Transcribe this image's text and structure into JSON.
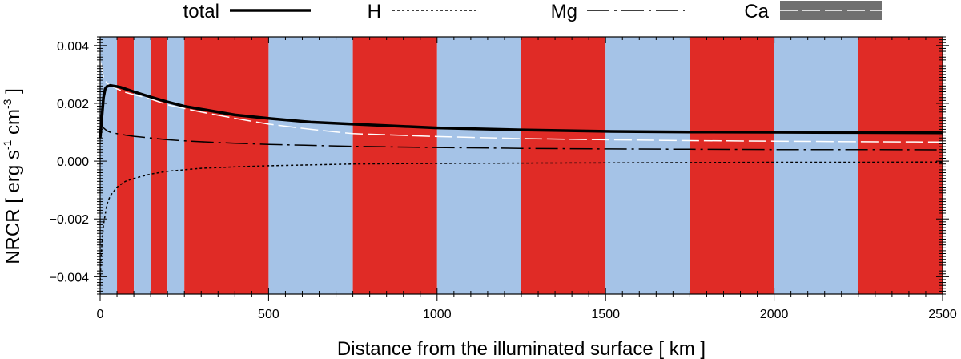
{
  "chart_data": {
    "type": "line",
    "title": "",
    "xlabel": "Distance from the illuminated surface [ km ]",
    "ylabel": {
      "base": "NRCR [ erg s",
      "exp1": "-1",
      "mid": " cm",
      "exp2": "-3",
      "end": " ]"
    },
    "xlim": [
      0,
      2500
    ],
    "ylim": [
      -0.0046,
      0.0043
    ],
    "x_ticks": [
      0,
      500,
      1000,
      1500,
      2000,
      2500
    ],
    "y_ticks": [
      -0.004,
      -0.002,
      0.0,
      0.002,
      0.004
    ],
    "x_tick_labels": [
      "0",
      "500",
      "1000",
      "1500",
      "2000",
      "2500"
    ],
    "y_tick_labels": [
      "−0.004",
      "−0.002",
      "0.000",
      "0.002",
      "0.004"
    ],
    "background_bands": [
      {
        "x0": 0,
        "x1": 50,
        "color": "#a5c3e7"
      },
      {
        "x0": 50,
        "x1": 100,
        "color": "#e02b26"
      },
      {
        "x0": 100,
        "x1": 150,
        "color": "#a5c3e7"
      },
      {
        "x0": 150,
        "x1": 200,
        "color": "#e02b26"
      },
      {
        "x0": 200,
        "x1": 250,
        "color": "#a5c3e7"
      },
      {
        "x0": 250,
        "x1": 500,
        "color": "#e02b26"
      },
      {
        "x0": 500,
        "x1": 750,
        "color": "#a5c3e7"
      },
      {
        "x0": 750,
        "x1": 1000,
        "color": "#e02b26"
      },
      {
        "x0": 1000,
        "x1": 1250,
        "color": "#a5c3e7"
      },
      {
        "x0": 1250,
        "x1": 1500,
        "color": "#e02b26"
      },
      {
        "x0": 1500,
        "x1": 1750,
        "color": "#a5c3e7"
      },
      {
        "x0": 1750,
        "x1": 2000,
        "color": "#e02b26"
      },
      {
        "x0": 2000,
        "x1": 2250,
        "color": "#a5c3e7"
      },
      {
        "x0": 2250,
        "x1": 2500,
        "color": "#e02b26"
      }
    ],
    "series": [
      {
        "name": "total",
        "style": "solid-thick",
        "color": "#000000",
        "x": [
          0,
          5,
          10,
          15,
          20,
          30,
          40,
          50,
          60,
          80,
          100,
          150,
          200,
          250,
          300,
          400,
          500,
          625,
          750,
          1000,
          1250,
          1500,
          1750,
          2000,
          2250,
          2500
        ],
        "y": [
          0.0008,
          0.0015,
          0.0022,
          0.0025,
          0.00258,
          0.00262,
          0.0026,
          0.00258,
          0.00256,
          0.00248,
          0.0024,
          0.00222,
          0.00205,
          0.0019,
          0.0018,
          0.0016,
          0.00148,
          0.00135,
          0.00128,
          0.00115,
          0.00108,
          0.00103,
          0.00101,
          0.001,
          0.00099,
          0.00098
        ]
      },
      {
        "name": "H",
        "style": "dotted",
        "color": "#000000",
        "x": [
          0,
          2,
          5,
          10,
          20,
          30,
          50,
          75,
          100,
          150,
          200,
          250,
          300,
          400,
          500,
          750,
          1000,
          1250,
          1500,
          1750,
          2000,
          2250,
          2500
        ],
        "y": [
          -0.0043,
          -0.0036,
          -0.0029,
          -0.0022,
          -0.0015,
          -0.0012,
          -0.0009,
          -0.0007,
          -0.0006,
          -0.00045,
          -0.00035,
          -0.0003,
          -0.00025,
          -0.0002,
          -0.00016,
          -0.0001,
          -8e-05,
          -7e-05,
          -6e-05,
          -5e-05,
          -4e-05,
          -4e-05,
          -3e-05
        ]
      },
      {
        "name": "Mg",
        "style": "dash-dot",
        "color": "#000000",
        "x": [
          0,
          2,
          5,
          10,
          20,
          30,
          50,
          75,
          100,
          150,
          200,
          250,
          300,
          400,
          500,
          750,
          1000,
          1250,
          1500,
          1750,
          2000,
          2250,
          2500
        ],
        "y": [
          0.0016,
          0.00135,
          0.00125,
          0.00115,
          0.00105,
          0.001,
          0.00095,
          0.0009,
          0.00086,
          0.0008,
          0.00074,
          0.0007,
          0.00067,
          0.00062,
          0.00058,
          0.00051,
          0.00047,
          0.00044,
          0.00042,
          0.00041,
          0.0004,
          0.0004,
          0.00039
        ]
      },
      {
        "name": "Ca",
        "style": "long-dash",
        "color": "#ffffff",
        "x": [
          0,
          5,
          10,
          20,
          30,
          50,
          75,
          100,
          150,
          200,
          250,
          300,
          400,
          500,
          625,
          750,
          1000,
          1250,
          1500,
          1750,
          2000,
          2250,
          2500
        ],
        "y": [
          0.0035,
          0.0032,
          0.0029,
          0.0027,
          0.00262,
          0.0025,
          0.00238,
          0.0023,
          0.00215,
          0.00195,
          0.00182,
          0.0017,
          0.00148,
          0.00128,
          0.0011,
          0.00095,
          0.00085,
          0.00078,
          0.00074,
          0.00071,
          0.00069,
          0.00067,
          0.00066
        ]
      }
    ],
    "legend": [
      {
        "label": "total",
        "style": "solid-thick"
      },
      {
        "label": "H",
        "style": "dotted"
      },
      {
        "label": "Mg",
        "style": "dash-dot"
      },
      {
        "label": "Ca",
        "style": "long-dash-on-gray"
      }
    ],
    "legend_position": "top",
    "legend_swatch_bg": "#707070",
    "grid": false
  }
}
